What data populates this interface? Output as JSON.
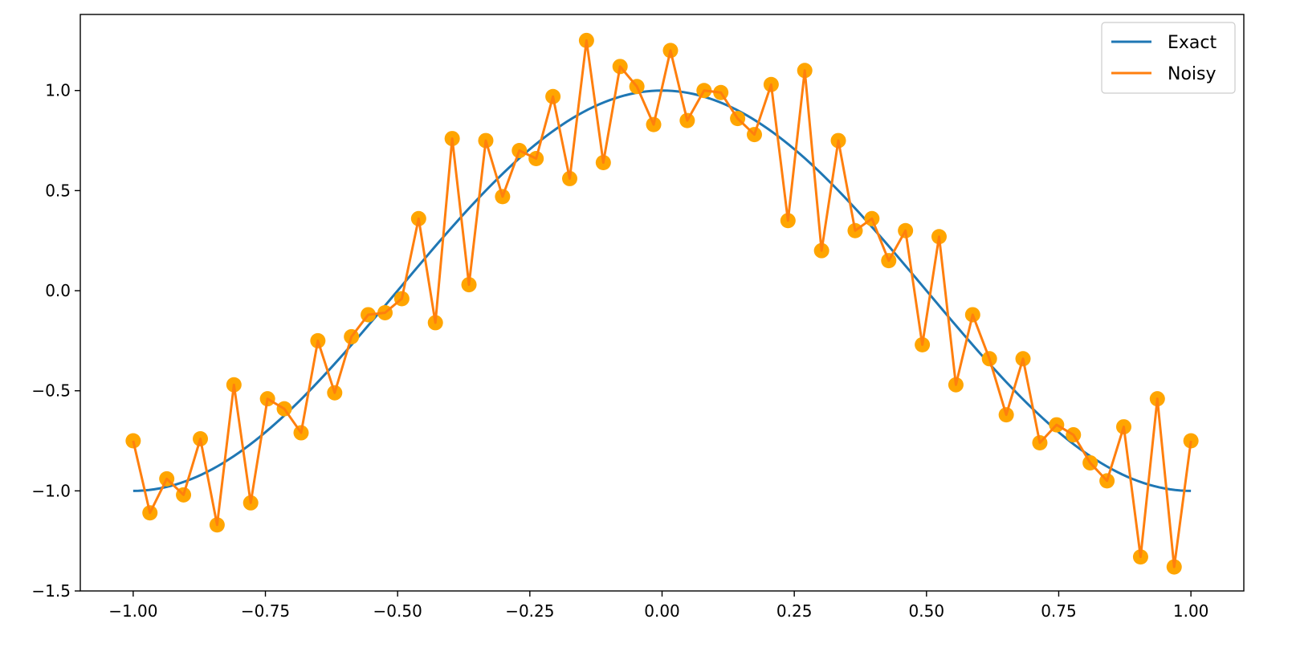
{
  "chart_data": {
    "type": "line",
    "title": "",
    "xlabel": "",
    "ylabel": "",
    "xlim": [
      -1.1,
      1.1
    ],
    "ylim": [
      -1.5,
      1.38
    ],
    "grid": false,
    "legend_position": "top-right",
    "x_ticks": [
      -1.0,
      -0.75,
      -0.5,
      -0.25,
      0.0,
      0.25,
      0.5,
      0.75,
      1.0
    ],
    "x_tick_labels": [
      "−1.00",
      "−0.75",
      "−0.50",
      "−0.25",
      "0.00",
      "0.25",
      "0.50",
      "0.75",
      "1.00"
    ],
    "y_ticks": [
      -1.5,
      -1.0,
      -0.5,
      0.0,
      0.5,
      1.0
    ],
    "y_tick_labels": [
      "−1.5",
      "−1.0",
      "−0.5",
      "0.0",
      "0.5",
      "1.0"
    ],
    "colors": {
      "exact": "#1f77b4",
      "noisy": "#ff7f0e",
      "markers": "#ffa500"
    },
    "series": [
      {
        "name": "Exact",
        "function": "cos(pi*x)",
        "x_range": [
          -1.0,
          1.0
        ]
      },
      {
        "name": "Noisy",
        "x": [
          -1.0,
          -0.9683,
          -0.9365,
          -0.9048,
          -0.873,
          -0.8413,
          -0.8095,
          -0.7778,
          -0.746,
          -0.7143,
          -0.6825,
          -0.6508,
          -0.619,
          -0.5873,
          -0.5556,
          -0.5238,
          -0.4921,
          -0.4603,
          -0.4286,
          -0.3968,
          -0.3651,
          -0.3333,
          -0.3016,
          -0.2698,
          -0.2381,
          -0.2063,
          -0.1746,
          -0.1429,
          -0.1111,
          -0.0794,
          -0.0476,
          -0.0159,
          0.0159,
          0.0476,
          0.0794,
          0.1111,
          0.1429,
          0.1746,
          0.2063,
          0.2381,
          0.2698,
          0.3016,
          0.3333,
          0.3651,
          0.3968,
          0.4286,
          0.4603,
          0.4921,
          0.5238,
          0.5556,
          0.5873,
          0.619,
          0.6508,
          0.6825,
          0.7143,
          0.746,
          0.7778,
          0.8095,
          0.8413,
          0.873,
          0.9048,
          0.9365,
          0.9683,
          1.0
        ],
        "values": [
          -0.75,
          -1.11,
          -0.94,
          -1.02,
          -0.74,
          -1.17,
          -0.47,
          -1.06,
          -0.54,
          -0.59,
          -0.71,
          -0.25,
          -0.51,
          -0.23,
          -0.12,
          -0.11,
          -0.04,
          0.36,
          -0.16,
          0.76,
          0.03,
          0.75,
          0.47,
          0.7,
          0.66,
          0.97,
          0.56,
          1.25,
          0.64,
          1.12,
          1.02,
          0.83,
          1.2,
          0.85,
          1.0,
          0.99,
          0.86,
          0.78,
          1.03,
          0.35,
          1.1,
          0.2,
          0.75,
          0.3,
          0.36,
          0.15,
          0.3,
          -0.27,
          0.27,
          -0.47,
          -0.12,
          -0.34,
          -0.62,
          -0.34,
          -0.76,
          -0.67,
          -0.72,
          -0.86,
          -0.95,
          -0.68,
          -1.33,
          -0.54,
          -1.38,
          -0.75
        ]
      }
    ]
  }
}
